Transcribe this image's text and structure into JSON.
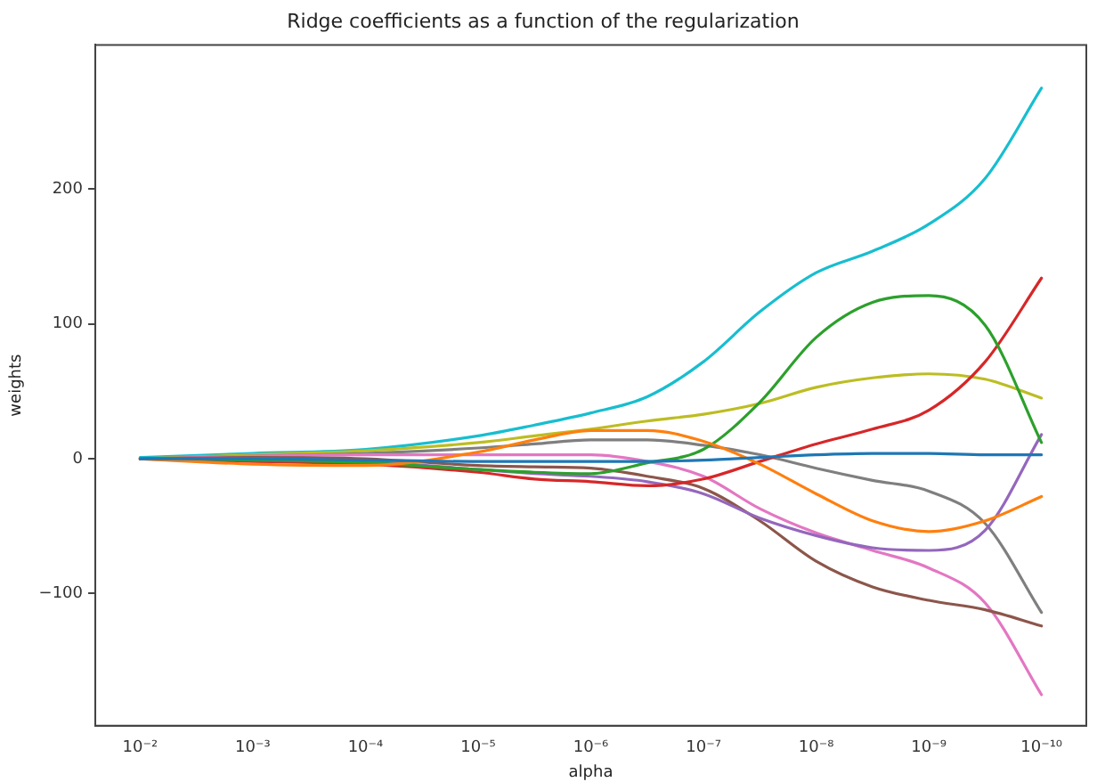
{
  "chart_data": {
    "type": "line",
    "title": "Ridge coefficients as a function of the regularization",
    "xlabel": "alpha",
    "ylabel": "weights",
    "log": "x",
    "grid": false,
    "legend": false,
    "marker": "none",
    "line_style": "solid",
    "x": [
      0.01,
      0.001,
      0.0001,
      1e-05,
      3.16e-06,
      1e-06,
      3.16e-07,
      1e-07,
      3.16e-08,
      1e-08,
      3.16e-09,
      1e-09,
      3.16e-10,
      1e-10
    ],
    "xlim": [
      0.025,
      4e-11
    ],
    "xticks": [
      {
        "value": 0.01,
        "label": "10⁻²"
      },
      {
        "value": 0.001,
        "label": "10⁻³"
      },
      {
        "value": 0.0001,
        "label": "10⁻⁴"
      },
      {
        "value": 1e-05,
        "label": "10⁻⁵"
      },
      {
        "value": 1e-06,
        "label": "10⁻⁶"
      },
      {
        "value": 1e-07,
        "label": "10⁻⁷"
      },
      {
        "value": 1e-08,
        "label": "10⁻⁸"
      },
      {
        "value": 1e-09,
        "label": "10⁻⁹"
      },
      {
        "value": 1e-10,
        "label": "10⁻¹⁰"
      }
    ],
    "ylim": [
      -198,
      307
    ],
    "yticks": [
      -100,
      0,
      100,
      200
    ],
    "series": [
      {
        "color": "#1f77b4",
        "values": [
          0,
          0,
          -1,
          -2,
          -2,
          -2,
          -2,
          -1,
          1,
          3,
          4,
          4,
          3,
          3
        ]
      },
      {
        "color": "#ff7f0e",
        "values": [
          0,
          -4,
          -5,
          5,
          14,
          21,
          21,
          13,
          -4,
          -26,
          -46,
          -54,
          -46,
          -28
        ]
      },
      {
        "color": "#2ca02c",
        "values": [
          0,
          -1,
          -3,
          -8,
          -10,
          -11,
          -3,
          7,
          42,
          90,
          116,
          121,
          99,
          12
        ]
      },
      {
        "color": "#d62728",
        "values": [
          0,
          -2,
          -4,
          -10,
          -15,
          -17,
          -20,
          -15,
          -2,
          11,
          22,
          36,
          72,
          134
        ]
      },
      {
        "color": "#9467bd",
        "values": [
          0,
          0,
          -2,
          -8,
          -11,
          -13,
          -17,
          -26,
          -44,
          -57,
          -66,
          -68,
          -53,
          18
        ]
      },
      {
        "color": "#8c564b",
        "values": [
          0,
          1,
          0,
          -5,
          -6,
          -7,
          -13,
          -22,
          -46,
          -76,
          -95,
          -105,
          -112,
          -124
        ]
      },
      {
        "color": "#e377c2",
        "values": [
          0,
          null,
          3,
          3,
          3,
          3,
          -2,
          -13,
          -37,
          -55,
          -68,
          -81,
          -107,
          -175
        ]
      },
      {
        "color": "#7f7f7f",
        "values": [
          0,
          2,
          4,
          8,
          11,
          14,
          14,
          10,
          3,
          -7,
          -16,
          -24,
          -48,
          -114
        ]
      },
      {
        "color": "#bcbd22",
        "values": [
          0,
          3,
          6,
          12,
          17,
          22,
          28,
          33,
          41,
          53,
          60,
          63,
          59,
          45
        ]
      },
      {
        "color": "#17becf",
        "values": [
          1,
          4,
          7,
          17,
          25,
          34,
          46,
          72,
          109,
          138,
          154,
          174,
          208,
          275
        ]
      }
    ]
  }
}
